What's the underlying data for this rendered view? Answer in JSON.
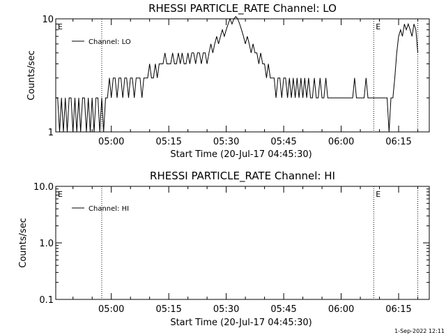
{
  "chart_data": [
    {
      "type": "line",
      "title": "RHESSI PARTICLE_RATE Channel: LO",
      "xlabel": "Start Time (20-Jul-17 04:45:30)",
      "ylabel": "Counts/sec",
      "y_scale": "log",
      "ylim": [
        1,
        10
      ],
      "y_ticks": [
        "1",
        "10"
      ],
      "xlim": [
        "04:45:30",
        "06:23:00"
      ],
      "x_ticks": [
        "05:00",
        "05:15",
        "05:30",
        "05:45",
        "06:00",
        "06:15"
      ],
      "legend": "top-left",
      "series": [
        {
          "name": "Channel: LO",
          "color": "#000000",
          "points": [
            [
              "04:45:30",
              2
            ],
            [
              "04:46:00",
              2
            ],
            [
              "04:46:30",
              1
            ],
            [
              "04:47:00",
              2
            ],
            [
              "04:47:30",
              1
            ],
            [
              "04:48:00",
              2
            ],
            [
              "04:48:30",
              1
            ],
            [
              "04:49:00",
              2
            ],
            [
              "04:49:30",
              2
            ],
            [
              "04:50:00",
              1
            ],
            [
              "04:50:30",
              2
            ],
            [
              "04:51:00",
              1
            ],
            [
              "04:51:30",
              2
            ],
            [
              "04:52:00",
              1
            ],
            [
              "04:52:30",
              2
            ],
            [
              "04:53:00",
              2
            ],
            [
              "04:53:30",
              1
            ],
            [
              "04:54:00",
              2
            ],
            [
              "04:54:30",
              1
            ],
            [
              "04:55:00",
              2
            ],
            [
              "04:55:30",
              1
            ],
            [
              "04:56:00",
              2
            ],
            [
              "04:56:30",
              2
            ],
            [
              "04:57:00",
              1
            ],
            [
              "04:57:30",
              2
            ],
            [
              "04:58:00",
              1
            ],
            [
              "04:58:30",
              2
            ],
            [
              "04:59:00",
              2
            ],
            [
              "04:59:30",
              3
            ],
            [
              "05:00:00",
              2
            ],
            [
              "05:00:30",
              3
            ],
            [
              "05:01:00",
              3
            ],
            [
              "05:01:30",
              2
            ],
            [
              "05:02:00",
              3
            ],
            [
              "05:02:30",
              3
            ],
            [
              "05:03:00",
              2
            ],
            [
              "05:03:30",
              3
            ],
            [
              "05:04:00",
              3
            ],
            [
              "05:04:30",
              2
            ],
            [
              "05:05:00",
              3
            ],
            [
              "05:05:30",
              3
            ],
            [
              "05:06:00",
              2
            ],
            [
              "05:06:30",
              3
            ],
            [
              "05:07:00",
              3
            ],
            [
              "05:07:30",
              3
            ],
            [
              "05:08:00",
              2
            ],
            [
              "05:08:30",
              3
            ],
            [
              "05:09:00",
              3
            ],
            [
              "05:09:30",
              3
            ],
            [
              "05:10:00",
              4
            ],
            [
              "05:10:30",
              3
            ],
            [
              "05:11:00",
              3
            ],
            [
              "05:11:30",
              4
            ],
            [
              "05:12:00",
              3
            ],
            [
              "05:12:30",
              4
            ],
            [
              "05:13:00",
              4
            ],
            [
              "05:13:30",
              4
            ],
            [
              "05:14:00",
              5
            ],
            [
              "05:14:30",
              4
            ],
            [
              "05:15:00",
              4
            ],
            [
              "05:15:30",
              4
            ],
            [
              "05:16:00",
              5
            ],
            [
              "05:16:30",
              4
            ],
            [
              "05:17:00",
              4
            ],
            [
              "05:17:30",
              5
            ],
            [
              "05:18:00",
              4
            ],
            [
              "05:18:30",
              5
            ],
            [
              "05:19:00",
              4
            ],
            [
              "05:19:30",
              4
            ],
            [
              "05:20:00",
              5
            ],
            [
              "05:20:30",
              4
            ],
            [
              "05:21:00",
              5
            ],
            [
              "05:21:30",
              5
            ],
            [
              "05:22:00",
              4
            ],
            [
              "05:22:30",
              5
            ],
            [
              "05:23:00",
              5
            ],
            [
              "05:23:30",
              4
            ],
            [
              "05:24:00",
              5
            ],
            [
              "05:24:30",
              5
            ],
            [
              "05:25:00",
              4
            ],
            [
              "05:25:30",
              5
            ],
            [
              "05:26:00",
              6
            ],
            [
              "05:26:30",
              5
            ],
            [
              "05:27:00",
              6
            ],
            [
              "05:27:30",
              7
            ],
            [
              "05:28:00",
              6
            ],
            [
              "05:28:30",
              7
            ],
            [
              "05:29:00",
              8
            ],
            [
              "05:29:30",
              7
            ],
            [
              "05:30:00",
              8
            ],
            [
              "05:30:30",
              9
            ],
            [
              "05:31:00",
              10
            ],
            [
              "05:31:30",
              9
            ],
            [
              "05:32:00",
              10
            ],
            [
              "05:32:30",
              11
            ],
            [
              "05:33:00",
              10
            ],
            [
              "05:33:30",
              9
            ],
            [
              "05:34:00",
              8
            ],
            [
              "05:34:30",
              7
            ],
            [
              "05:35:00",
              6
            ],
            [
              "05:35:30",
              7
            ],
            [
              "05:36:00",
              6
            ],
            [
              "05:36:30",
              5
            ],
            [
              "05:37:00",
              6
            ],
            [
              "05:37:30",
              5
            ],
            [
              "05:38:00",
              5
            ],
            [
              "05:38:30",
              4
            ],
            [
              "05:39:00",
              5
            ],
            [
              "05:39:30",
              4
            ],
            [
              "05:40:00",
              4
            ],
            [
              "05:40:30",
              3
            ],
            [
              "05:41:00",
              4
            ],
            [
              "05:41:30",
              3
            ],
            [
              "05:42:00",
              3
            ],
            [
              "05:42:30",
              3
            ],
            [
              "05:43:00",
              2
            ],
            [
              "05:43:30",
              3
            ],
            [
              "05:44:00",
              3
            ],
            [
              "05:44:30",
              2
            ],
            [
              "05:45:00",
              3
            ],
            [
              "05:45:30",
              3
            ],
            [
              "05:46:00",
              2
            ],
            [
              "05:46:30",
              3
            ],
            [
              "05:47:00",
              2
            ],
            [
              "05:47:30",
              3
            ],
            [
              "05:48:00",
              2
            ],
            [
              "05:48:30",
              3
            ],
            [
              "05:49:00",
              2
            ],
            [
              "05:49:30",
              3
            ],
            [
              "05:50:00",
              2
            ],
            [
              "05:50:30",
              3
            ],
            [
              "05:51:00",
              2
            ],
            [
              "05:51:30",
              3
            ],
            [
              "05:52:00",
              2
            ],
            [
              "05:52:30",
              2
            ],
            [
              "05:53:00",
              3
            ],
            [
              "05:53:30",
              2
            ],
            [
              "05:54:00",
              2
            ],
            [
              "05:54:30",
              3
            ],
            [
              "05:55:00",
              2
            ],
            [
              "05:55:30",
              2
            ],
            [
              "05:56:00",
              3
            ],
            [
              "05:56:30",
              2
            ],
            [
              "05:57:00",
              2
            ],
            [
              "05:58:00",
              2
            ],
            [
              "05:59:00",
              2
            ],
            [
              "06:00:00",
              2
            ],
            [
              "06:01:00",
              2
            ],
            [
              "06:02:00",
              2
            ],
            [
              "06:03:00",
              2
            ],
            [
              "06:03:30",
              3
            ],
            [
              "06:04:00",
              2
            ],
            [
              "06:05:00",
              2
            ],
            [
              "06:06:00",
              2
            ],
            [
              "06:06:30",
              3
            ],
            [
              "06:07:00",
              2
            ],
            [
              "06:07:30",
              2
            ],
            [
              "06:08:30",
              2
            ],
            [
              "06:09:00",
              2
            ],
            [
              "06:10:00",
              2
            ],
            [
              "06:11:00",
              2
            ],
            [
              "06:12:00",
              2
            ],
            [
              "06:12:30",
              1
            ],
            [
              "06:13:00",
              2
            ],
            [
              "06:13:30",
              2
            ],
            [
              "06:14:00",
              3
            ],
            [
              "06:14:30",
              5
            ],
            [
              "06:15:00",
              7
            ],
            [
              "06:15:30",
              8
            ],
            [
              "06:16:00",
              7
            ],
            [
              "06:16:30",
              9
            ],
            [
              "06:17:00",
              8
            ],
            [
              "06:17:30",
              9
            ],
            [
              "06:18:00",
              8
            ],
            [
              "06:18:30",
              7
            ],
            [
              "06:19:00",
              9
            ],
            [
              "06:19:30",
              8
            ],
            [
              "06:20:00",
              5
            ]
          ]
        }
      ],
      "event_lines": [
        "04:57:30",
        "06:08:30",
        "06:20:00"
      ],
      "event_labels": [
        {
          "text": "E",
          "at": "04:45:30"
        },
        {
          "text": "E",
          "at": "06:08:30"
        }
      ]
    },
    {
      "type": "line",
      "title": "RHESSI PARTICLE_RATE Channel: HI",
      "xlabel": "Start Time (20-Jul-17 04:45:30)",
      "ylabel": "Counts/sec",
      "y_scale": "log",
      "ylim": [
        0.1,
        10
      ],
      "y_ticks": [
        "0.1",
        "1.0",
        "10.0"
      ],
      "xlim": [
        "04:45:30",
        "06:23:00"
      ],
      "x_ticks": [
        "05:00",
        "05:15",
        "05:30",
        "05:45",
        "06:00",
        "06:15"
      ],
      "legend": "top-left",
      "series": [
        {
          "name": "Channel: HI",
          "color": "#000000",
          "points": []
        }
      ],
      "event_lines": [
        "04:57:30",
        "06:08:30",
        "06:20:00"
      ],
      "event_labels": [
        {
          "text": "E",
          "at": "04:45:30"
        },
        {
          "text": "E",
          "at": "06:08:30"
        }
      ]
    }
  ],
  "footer": {
    "date_stamp": "1-Sep-2022 12:11"
  }
}
